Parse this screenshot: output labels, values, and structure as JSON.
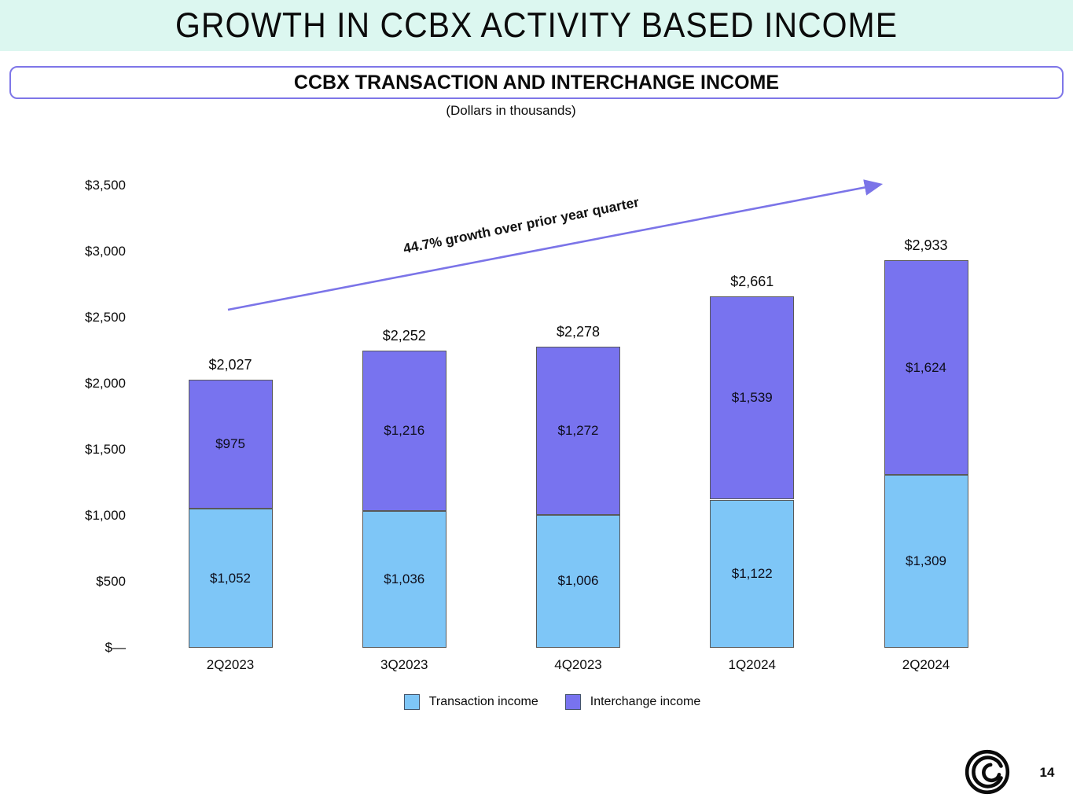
{
  "slide": {
    "title": "GROWTH IN CCBX ACTIVITY BASED INCOME",
    "box_heading": "CCBX TRANSACTION AND INTERCHANGE INCOME",
    "units_note": "(Dollars in thousands)",
    "page_number": "14",
    "logo": "coastal-swirl-logo"
  },
  "colors": {
    "banner_bg": "#DCF7F0",
    "box_border": "#7E76E8",
    "transaction_fill": "#7EC6F7",
    "interchange_fill": "#7873EF",
    "bar_border": "#595959",
    "arrow": "#7B74E8",
    "text": "#0b0b0b"
  },
  "chart_data": {
    "type": "bar",
    "stacked": true,
    "title": "CCBX TRANSACTION AND INTERCHANGE INCOME",
    "units": "Dollars in thousands",
    "categories": [
      "2Q2023",
      "3Q2023",
      "4Q2023",
      "1Q2024",
      "2Q2024"
    ],
    "series": [
      {
        "name": "Transaction income",
        "color": "#7EC6F7",
        "values": [
          1052,
          1036,
          1006,
          1122,
          1309
        ],
        "labels": [
          "$1,052",
          "$1,036",
          "$1,006",
          "$1,122",
          "$1,309"
        ]
      },
      {
        "name": "Interchange income",
        "color": "#7873EF",
        "values": [
          975,
          1216,
          1272,
          1539,
          1624
        ],
        "labels": [
          "$975",
          "$1,216",
          "$1,272",
          "$1,539",
          "$1,624"
        ]
      }
    ],
    "totals": [
      2027,
      2252,
      2278,
      2661,
      2933
    ],
    "total_labels": [
      "$2,027",
      "$2,252",
      "$2,278",
      "$2,661",
      "$2,933"
    ],
    "y_axis": {
      "min": 0,
      "max": 3500,
      "step": 500,
      "tick_labels": [
        "$—",
        "$500",
        "$1,000",
        "$1,500",
        "$2,000",
        "$2,500",
        "$3,000",
        "$3,500"
      ]
    },
    "annotation": {
      "text": "44.7% growth over prior year quarter"
    },
    "legend": [
      "Transaction income",
      "Interchange income"
    ],
    "legend_position": "bottom",
    "grid": false,
    "xlabel": "",
    "ylabel": ""
  }
}
